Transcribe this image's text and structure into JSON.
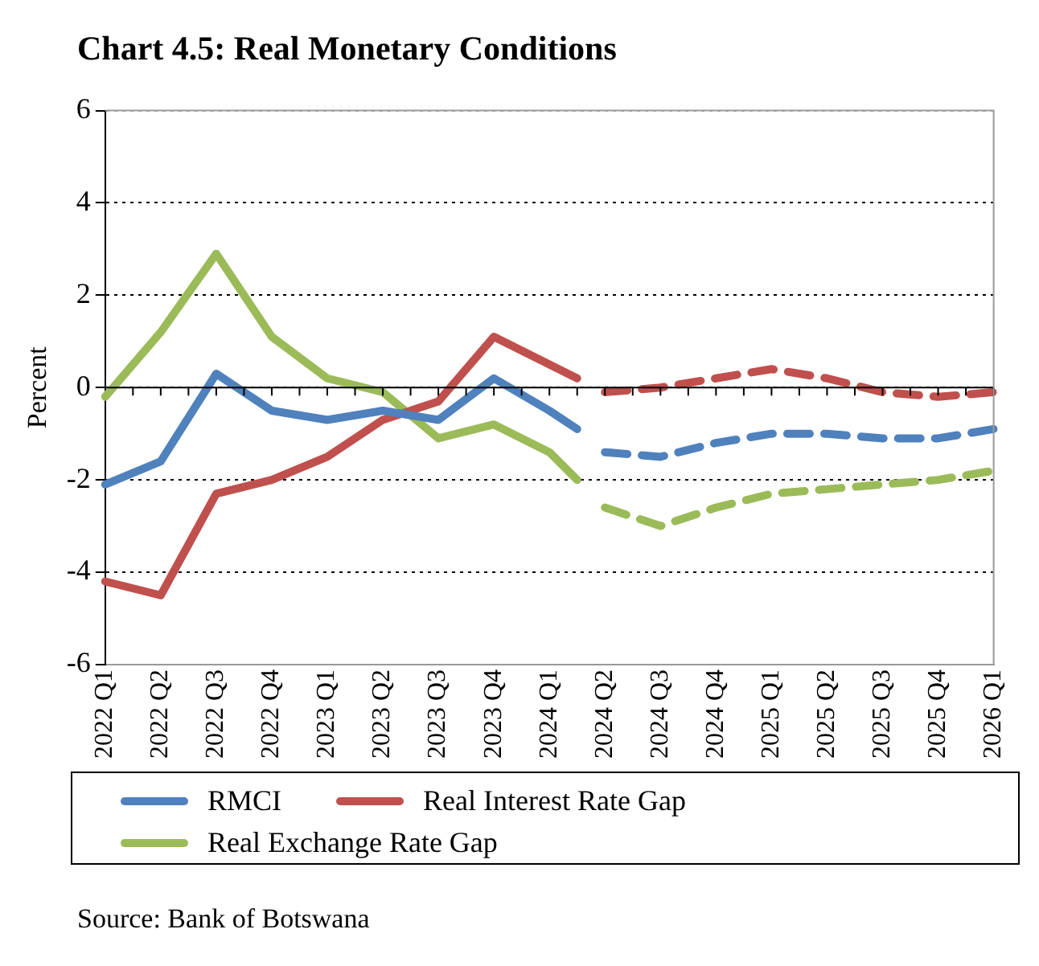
{
  "chart_data": {
    "type": "line",
    "title": "Chart 4.5: Real Monetary Conditions",
    "ylabel": "Percent",
    "categories": [
      "2022 Q1",
      null,
      "2022 Q2",
      null,
      "2022 Q3",
      null,
      "2022 Q4",
      null,
      "2023 Q1",
      null,
      "2023 Q2",
      null,
      "2023 Q3",
      null,
      "2023 Q4",
      null,
      "2024 Q1",
      null,
      "2024 Q2",
      null,
      "2024 Q3",
      null,
      "2024 Q4",
      null,
      "2025 Q1",
      null,
      "2025 Q2",
      null,
      "2025 Q3",
      null,
      "2025 Q4",
      null,
      "2026 Q1"
    ],
    "series": [
      {
        "name": "RMCI",
        "color": "#4f81bd",
        "line_style": "solid",
        "values": [
          -2.1,
          null,
          -1.6,
          null,
          0.3,
          null,
          -0.5,
          null,
          -0.7,
          null,
          -0.5,
          null,
          -0.7,
          null,
          0.2,
          null,
          -0.5,
          -0.9,
          null,
          null,
          null,
          null,
          null,
          null,
          null,
          null,
          null,
          null,
          null,
          null,
          null,
          null,
          null
        ]
      },
      {
        "name": "Real Interest Rate Gap",
        "color": "#c0504d",
        "line_style": "solid",
        "values": [
          -4.2,
          null,
          -4.5,
          null,
          -2.3,
          null,
          -2.0,
          null,
          -1.5,
          null,
          -0.7,
          null,
          -0.3,
          null,
          1.1,
          null,
          0.5,
          0.2,
          null,
          null,
          null,
          null,
          null,
          null,
          null,
          null,
          null,
          null,
          null,
          null,
          null,
          null,
          null
        ]
      },
      {
        "name": "Real Exchange Rate Gap",
        "color": "#9bbb59",
        "line_style": "solid",
        "values": [
          -0.2,
          null,
          1.2,
          null,
          2.9,
          null,
          1.1,
          null,
          0.2,
          null,
          -0.1,
          null,
          -1.1,
          null,
          -0.8,
          null,
          -1.4,
          -2.0,
          null,
          null,
          null,
          null,
          null,
          null,
          null,
          null,
          null,
          null,
          null,
          null,
          null,
          null,
          null
        ]
      },
      {
        "color": "#4f81bd",
        "line_style": "dashed",
        "values": [
          null,
          null,
          null,
          null,
          null,
          null,
          null,
          null,
          null,
          null,
          null,
          null,
          null,
          null,
          null,
          null,
          null,
          null,
          -1.4,
          null,
          -1.5,
          null,
          -1.2,
          null,
          -1.0,
          null,
          -1.0,
          null,
          -1.1,
          null,
          -1.1,
          null,
          -0.9
        ]
      },
      {
        "color": "#c0504d",
        "line_style": "dashed",
        "values": [
          null,
          null,
          null,
          null,
          null,
          null,
          null,
          null,
          null,
          null,
          null,
          null,
          null,
          null,
          null,
          null,
          null,
          null,
          -0.1,
          null,
          0.0,
          null,
          0.2,
          null,
          0.4,
          null,
          0.2,
          null,
          -0.1,
          null,
          -0.2,
          null,
          -0.1
        ]
      },
      {
        "color": "#9bbb59",
        "line_style": "dashed",
        "values": [
          null,
          null,
          null,
          null,
          null,
          null,
          null,
          null,
          null,
          null,
          null,
          null,
          null,
          null,
          null,
          null,
          null,
          null,
          -2.6,
          null,
          -3.0,
          null,
          -2.6,
          null,
          -2.3,
          null,
          -2.2,
          null,
          -2.1,
          null,
          -2.0,
          null,
          -1.8
        ]
      }
    ],
    "ylim": [
      -6,
      6
    ],
    "yticks": [
      -6,
      -4,
      -2,
      0,
      2,
      4,
      6
    ],
    "grid": "y",
    "legend": "bottom",
    "marker": "none",
    "annotations": [
      "Source: Bank of Botswana"
    ]
  }
}
